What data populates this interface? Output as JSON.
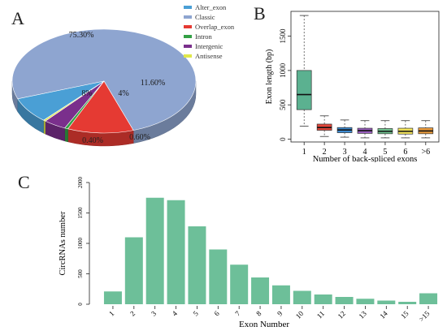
{
  "panels": {
    "a": "A",
    "b": "B",
    "c": "C"
  },
  "chart_data": [
    {
      "type": "pie",
      "labels": [
        "Alter_exon",
        "Classic",
        "Overlap_exon",
        "Intron",
        "Intergenic",
        "Antisense"
      ],
      "values": [
        8,
        75.3,
        11.6,
        0.6,
        4,
        0.4
      ],
      "value_labels": [
        "8%",
        "75.30%",
        "11.60%",
        "0.60%",
        "4%",
        "0.40%"
      ],
      "colors": [
        "#4a9fd5",
        "#8ea5d0",
        "#e53a33",
        "#33a045",
        "#7a2f8c",
        "#e0e84a"
      ],
      "legend": "top-right"
    },
    {
      "type": "box",
      "xlabel": "Number of back-spliced exons",
      "ylabel": "Exon length (bp)",
      "categories": [
        "1",
        "2",
        "3",
        "4",
        "5",
        "6",
        ">6"
      ],
      "ylim": [
        0,
        1800
      ],
      "yticks": [
        0,
        500,
        1000,
        1500
      ],
      "boxes": [
        {
          "whisker_low": 190,
          "q1": 430,
          "median": 650,
          "q3": 1000,
          "whisker_high": 1800,
          "color": "#5bb190"
        },
        {
          "whisker_low": 40,
          "q1": 130,
          "median": 170,
          "q3": 220,
          "whisker_high": 340,
          "color": "#e2463a"
        },
        {
          "whisker_low": 30,
          "q1": 95,
          "median": 135,
          "q3": 170,
          "whisker_high": 280,
          "color": "#3d8bd1"
        },
        {
          "whisker_low": 20,
          "q1": 85,
          "median": 125,
          "q3": 160,
          "whisker_high": 270,
          "color": "#9b5fc0"
        },
        {
          "whisker_low": 20,
          "q1": 80,
          "median": 115,
          "q3": 155,
          "whisker_high": 270,
          "color": "#6fc28f"
        },
        {
          "whisker_low": 20,
          "q1": 75,
          "median": 115,
          "q3": 160,
          "whisker_high": 270,
          "color": "#f0e25a"
        },
        {
          "whisker_low": 20,
          "q1": 80,
          "median": 120,
          "q3": 165,
          "whisker_high": 270,
          "color": "#e99a3c"
        }
      ]
    },
    {
      "type": "bar",
      "xlabel": "Exon Number",
      "ylabel": "CircRNAs number",
      "categories": [
        "1",
        "2",
        "3",
        "4",
        "5",
        "6",
        "7",
        "8",
        "9",
        "10",
        "11",
        "12",
        "13",
        "14",
        "15",
        ">15"
      ],
      "values": [
        210,
        1100,
        1750,
        1710,
        1280,
        900,
        650,
        440,
        310,
        220,
        160,
        120,
        90,
        60,
        40,
        180
      ],
      "ylim": [
        0,
        2000
      ],
      "yticks": [
        0,
        500,
        1000,
        1500,
        2000
      ],
      "color": "#6dbf99"
    }
  ]
}
